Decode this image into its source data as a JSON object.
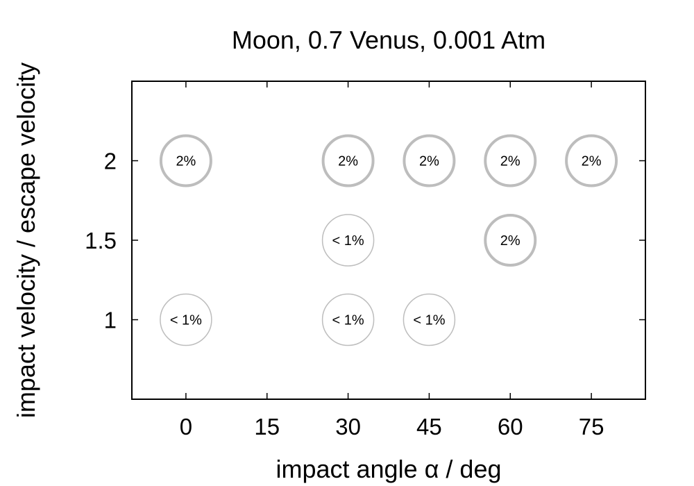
{
  "chart_data": {
    "type": "scatter",
    "title": "Moon, 0.7 Venus, 0.001 Atm",
    "xlabel": "impact angle α / deg",
    "ylabel": "impact velocity / escape velocity",
    "xlim": [
      -10,
      85
    ],
    "ylim": [
      0.5,
      2.5
    ],
    "xticks": [
      "0",
      "15",
      "30",
      "45",
      "60",
      "75"
    ],
    "yticks": [
      "1",
      "1.5",
      "2"
    ],
    "grid": false,
    "points": [
      {
        "x": 0,
        "y": 2,
        "label": "2%",
        "level": "high"
      },
      {
        "x": 30,
        "y": 2,
        "label": "2%",
        "level": "high"
      },
      {
        "x": 45,
        "y": 2,
        "label": "2%",
        "level": "high"
      },
      {
        "x": 60,
        "y": 2,
        "label": "2%",
        "level": "high"
      },
      {
        "x": 75,
        "y": 2,
        "label": "2%",
        "level": "high"
      },
      {
        "x": 30,
        "y": 1.5,
        "label": "< 1%",
        "level": "low"
      },
      {
        "x": 60,
        "y": 1.5,
        "label": "2%",
        "level": "high"
      },
      {
        "x": 0,
        "y": 1,
        "label": "< 1%",
        "level": "low"
      },
      {
        "x": 30,
        "y": 1,
        "label": "< 1%",
        "level": "low"
      },
      {
        "x": 45,
        "y": 1,
        "label": "< 1%",
        "level": "low"
      }
    ],
    "colors": {
      "marker_edge": "#bdbdbd",
      "axis": "#000000"
    }
  }
}
